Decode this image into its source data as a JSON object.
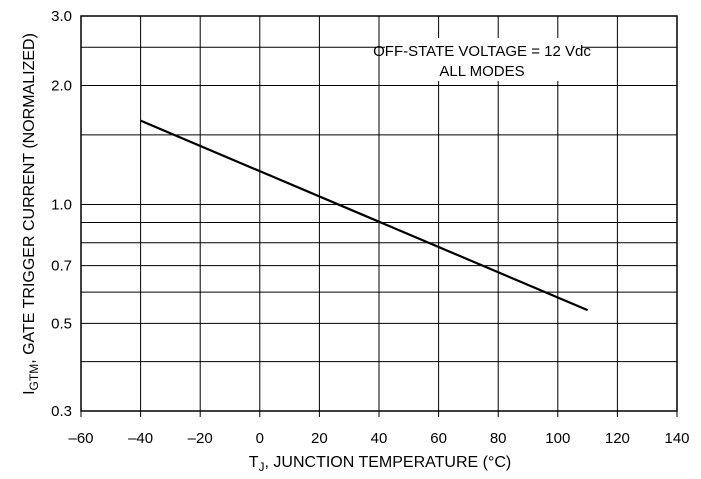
{
  "chart_data": {
    "type": "line",
    "scale_y": "log",
    "grid": true,
    "xlabel": {
      "main": "T",
      "sub": "J",
      "rest": ", JUNCTION TEMPERATURE (°C)"
    },
    "ylabel": {
      "main": "I",
      "sub": "GTM",
      "rest": ", GATE TRIGGER CURRENT (NORMALIZED)"
    },
    "xlim": [
      -60,
      140
    ],
    "ylim": [
      0.3,
      3.0
    ],
    "x_ticks": [
      -60,
      -40,
      -20,
      0,
      20,
      40,
      60,
      80,
      100,
      120,
      140
    ],
    "x_tick_labels": [
      "–60",
      "–40",
      "–20",
      "0",
      "20",
      "40",
      "60",
      "80",
      "100",
      "120",
      "140"
    ],
    "y_ticks": [
      0.3,
      0.5,
      0.7,
      1.0,
      2.0,
      3.0
    ],
    "y_tick_labels": [
      "0.3",
      "0.5",
      "0.7",
      "1.0",
      "2.0",
      "3.0"
    ],
    "y_gridlines": [
      0.3,
      0.4,
      0.5,
      0.6,
      0.7,
      0.8,
      0.9,
      1.0,
      1.5,
      2.0,
      2.5,
      3.0
    ],
    "annotation": [
      "OFF-STATE VOLTAGE = 12 Vdc",
      "ALL MODES"
    ],
    "series": [
      {
        "x": [
          -40,
          110
        ],
        "y": [
          1.63,
          0.54
        ]
      }
    ]
  }
}
